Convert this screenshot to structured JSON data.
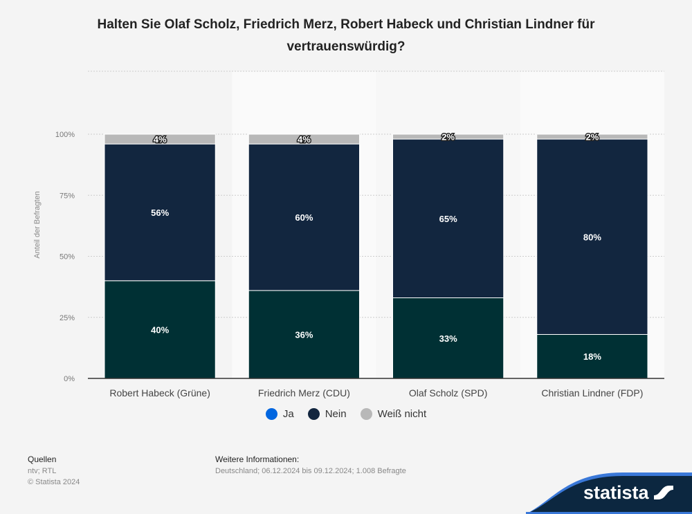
{
  "title": "Halten Sie Olaf Scholz, Friedrich Merz, Robert Habeck und Christian Lindner für vertrauenswürdig?",
  "chart_data": {
    "type": "bar",
    "stacked": true,
    "categories": [
      "Robert Habeck (Grüne)",
      "Friedrich Merz (CDU)",
      "Olaf Scholz (SPD)",
      "Christian Lindner (FDP)"
    ],
    "series": [
      {
        "name": "Ja",
        "values": [
          40,
          36,
          33,
          18
        ],
        "bar_color": "#003034",
        "legend_color": "#0066e0"
      },
      {
        "name": "Nein",
        "values": [
          56,
          60,
          65,
          80
        ],
        "bar_color": "#12263f",
        "legend_color": "#12263f"
      },
      {
        "name": "Weiß nicht",
        "values": [
          4,
          4,
          2,
          2
        ],
        "bar_color": "#b8b8b8",
        "legend_color": "#b8b8b8"
      }
    ],
    "ylabel": "Anteil der Befragten",
    "yticks": [
      "0%",
      "25%",
      "50%",
      "75%",
      "100%"
    ],
    "ylim": [
      0,
      100
    ],
    "grid": true,
    "legend": "bottom"
  },
  "footer": {
    "sources_label": "Quellen",
    "sources": "ntv; RTL",
    "copyright": "© Statista 2024",
    "info_label": "Weitere Informationen:",
    "info": "Deutschland; 06.12.2024 bis 09.12.2024; 1.008 Befragte"
  },
  "brand": "statista"
}
